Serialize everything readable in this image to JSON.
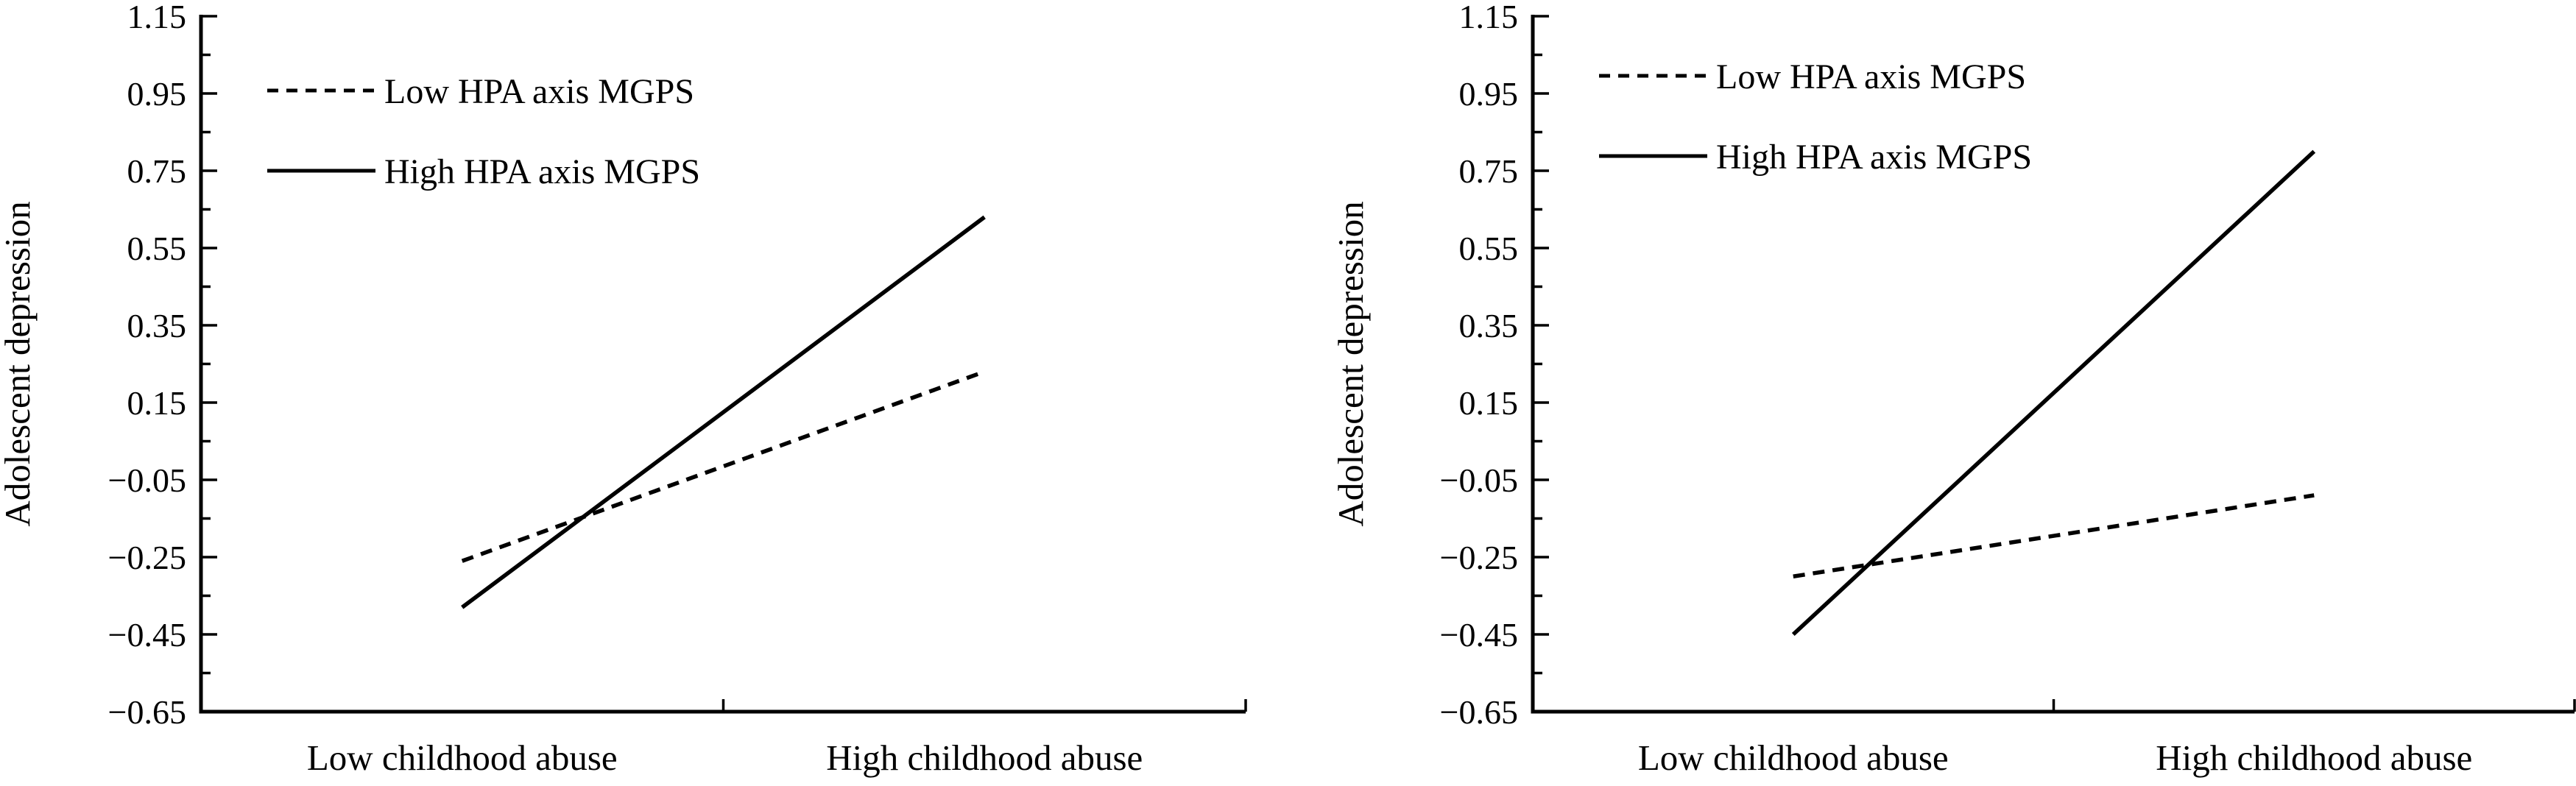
{
  "figure": {
    "background": "#ffffff",
    "ink_color": "#000000"
  },
  "chart_data": [
    {
      "panel": "left",
      "type": "line",
      "title": "",
      "categories": [
        "Low childhood abuse",
        "High childhood abuse"
      ],
      "series": [
        {
          "name": "Low HPA axis MGPS",
          "line_style": "dashed",
          "values": [
            -0.26,
            0.23
          ]
        },
        {
          "name": "High HPA axis MGPS",
          "line_style": "solid",
          "values": [
            -0.38,
            0.63
          ]
        }
      ],
      "xlabel": "",
      "ylabel": "Adolescent depression",
      "ylim": [
        -0.65,
        1.15
      ],
      "ytick_values": [
        1.15,
        0.95,
        0.75,
        0.55,
        0.35,
        0.15,
        -0.05,
        -0.25,
        -0.45,
        -0.65
      ],
      "ytick_labels": [
        "1.15",
        "0.95",
        "0.75",
        "0.55",
        "0.35",
        "0.15",
        "−0.05",
        "−0.25",
        "−0.45",
        "−0.65"
      ],
      "grid": false,
      "legend_position": "upper-left-inside",
      "legend_y": [
        123,
        232
      ]
    },
    {
      "panel": "right",
      "type": "line",
      "title": "",
      "categories": [
        "Low childhood abuse",
        "High childhood abuse"
      ],
      "series": [
        {
          "name": "Low HPA axis MGPS",
          "line_style": "dashed",
          "values": [
            -0.3,
            -0.09
          ]
        },
        {
          "name": "High HPA axis MGPS",
          "line_style": "solid",
          "values": [
            -0.45,
            0.8
          ]
        }
      ],
      "xlabel": "",
      "ylabel": "Adolescent depression",
      "ylim": [
        -0.65,
        1.15
      ],
      "ytick_values": [
        1.15,
        0.95,
        0.75,
        0.55,
        0.35,
        0.15,
        -0.05,
        -0.25,
        -0.45,
        -0.65
      ],
      "ytick_labels": [
        "1.15",
        "0.95",
        "0.75",
        "0.55",
        "0.35",
        "0.15",
        "−0.05",
        "−0.25",
        "−0.45",
        "−0.65"
      ],
      "grid": false,
      "legend_position": "upper-left-inside",
      "legend_y": [
        103,
        212
      ]
    }
  ]
}
